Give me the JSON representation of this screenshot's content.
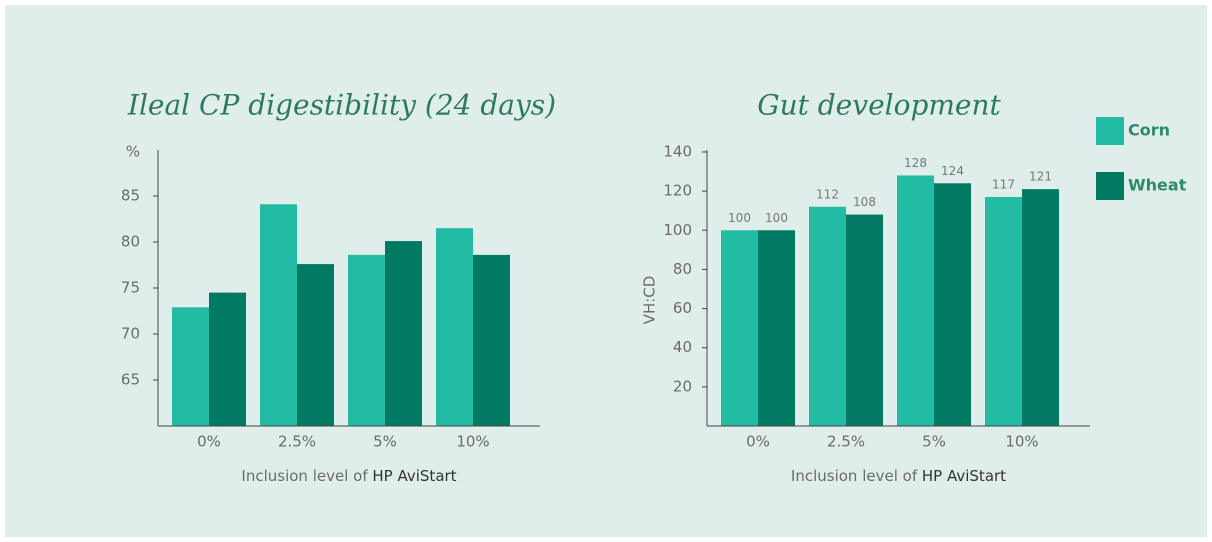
{
  "chart_data": [
    {
      "type": "bar",
      "title": "Ileal CP digestibility (24 days)",
      "y_label": "%",
      "y_label_position": "top",
      "x_label": "Inclusion level of",
      "x_label_emphasis": "HP AviStart",
      "categories": [
        "0%",
        "2.5%",
        "5%",
        "10%"
      ],
      "series": [
        {
          "color": "#22bba3",
          "values": [
            72.9,
            84.1,
            78.6,
            81.5
          ]
        },
        {
          "color": "#007a63",
          "values": [
            74.5,
            77.6,
            80.1,
            78.6
          ]
        }
      ],
      "ylim": [
        60,
        90
      ],
      "yticks": [
        65,
        70,
        75,
        80,
        85
      ]
    },
    {
      "type": "bar",
      "title": "Gut development",
      "y_label": "VH:CD",
      "y_label_position": "side",
      "x_label": "Inclusion level of",
      "x_label_emphasis": "HP AviStart",
      "categories": [
        "0%",
        "2.5%",
        "5%",
        "10%"
      ],
      "series": [
        {
          "name": "Corn",
          "color": "#22bba3",
          "values": [
            100,
            112,
            128,
            117
          ]
        },
        {
          "name": "Wheat",
          "color": "#007a63",
          "values": [
            100,
            108,
            124,
            121
          ]
        }
      ],
      "value_labels_shown": true,
      "legend": "right",
      "ylim": [
        0,
        141
      ],
      "yticks": [
        20,
        40,
        60,
        80,
        100,
        120,
        140
      ]
    }
  ]
}
